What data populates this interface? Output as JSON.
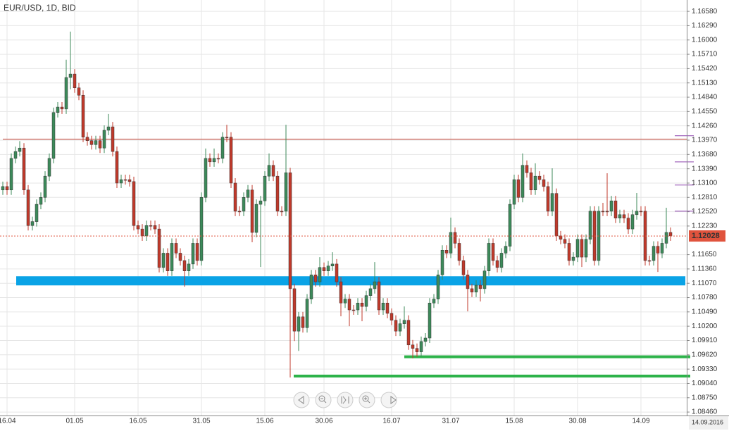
{
  "chart_data": {
    "type": "candlestick",
    "title": "EUR/USD, 1D, BID",
    "ylim": [
      1.0839,
      1.1681
    ],
    "yticks": [
      {
        "value": 1.1658,
        "label": "1.16580"
      },
      {
        "value": 1.1629,
        "label": "1.16290"
      },
      {
        "value": 1.16,
        "label": "1.16000"
      },
      {
        "value": 1.1571,
        "label": "1.15710"
      },
      {
        "value": 1.1542,
        "label": "1.15420"
      },
      {
        "value": 1.1513,
        "label": "1.15130"
      },
      {
        "value": 1.1484,
        "label": "1.14840"
      },
      {
        "value": 1.1455,
        "label": "1.14550"
      },
      {
        "value": 1.1426,
        "label": "1.14260"
      },
      {
        "value": 1.1397,
        "label": "1.13970"
      },
      {
        "value": 1.1368,
        "label": "1.13680"
      },
      {
        "value": 1.1339,
        "label": "1.13390"
      },
      {
        "value": 1.131,
        "label": "1.13100"
      },
      {
        "value": 1.1281,
        "label": "1.12810"
      },
      {
        "value": 1.1252,
        "label": "1.12520"
      },
      {
        "value": 1.1223,
        "label": "1.12230"
      },
      {
        "value": 1.1165,
        "label": "1.11650"
      },
      {
        "value": 1.1136,
        "label": "1.11360"
      },
      {
        "value": 1.1107,
        "label": "1.11070"
      },
      {
        "value": 1.1078,
        "label": "1.10780"
      },
      {
        "value": 1.1049,
        "label": "1.10490"
      },
      {
        "value": 1.102,
        "label": "1.10200"
      },
      {
        "value": 1.0991,
        "label": "1.09910"
      },
      {
        "value": 1.0962,
        "label": "1.09620"
      },
      {
        "value": 1.0933,
        "label": "1.09330"
      },
      {
        "value": 1.0904,
        "label": "1.09040"
      },
      {
        "value": 1.0875,
        "label": "1.08750"
      },
      {
        "value": 1.0846,
        "label": "1.08460"
      }
    ],
    "grid": true,
    "up_color": "#3c8a5a",
    "down_color": "#c0392b",
    "current_price": 1.12028,
    "current_price_color": "#e0533d",
    "current_date": "14.09.2016",
    "levels": [
      {
        "value": 1.1399,
        "color": "#c0392b"
      },
      {
        "value": 1.1112,
        "color": "#0aa3e6"
      },
      {
        "value": 1.0958,
        "color": "#2db34a"
      },
      {
        "value": 1.0919,
        "color": "#2db34a"
      },
      {
        "value": 1.1406,
        "color": "#8e44ad"
      },
      {
        "value": 1.1353,
        "color": "#8e44ad"
      },
      {
        "value": 1.1306,
        "color": "#8e44ad"
      },
      {
        "value": 1.1253,
        "color": "#8e44ad"
      }
    ],
    "categories": [
      null,
      "16.04",
      null,
      null,
      null,
      null,
      null,
      null,
      null,
      null,
      null,
      null,
      null,
      null,
      null,
      null,
      null,
      "01.05",
      null,
      null,
      null,
      null,
      null,
      null,
      null,
      null,
      null,
      null,
      null,
      null,
      null,
      null,
      "16.05",
      null,
      null,
      null,
      null,
      null,
      null,
      null,
      null,
      null,
      null,
      null,
      null,
      null,
      null,
      "31.05",
      null,
      null,
      null,
      null,
      null,
      null,
      null,
      null,
      null,
      null,
      null,
      null,
      null,
      null,
      "15.06",
      null,
      null,
      null,
      null,
      null,
      null,
      null,
      null,
      null,
      null,
      null,
      null,
      null,
      "30.06",
      null,
      null,
      null,
      null,
      null,
      null,
      null,
      null,
      null,
      null,
      null,
      null,
      null,
      null,
      null,
      "16.07",
      null,
      null,
      null,
      null,
      null,
      null,
      null,
      null,
      null,
      null,
      null,
      null,
      null,
      "31.07",
      null,
      null,
      null,
      null,
      null,
      null,
      null,
      null,
      null,
      null,
      null,
      null,
      null,
      null,
      "15.08",
      null,
      null,
      null,
      null,
      null,
      null,
      null,
      null,
      null,
      null,
      null,
      null,
      null,
      null,
      "30.08",
      null,
      null,
      null,
      null,
      null,
      null,
      null,
      null,
      null,
      null,
      null,
      null,
      null,
      null,
      "14.09",
      null,
      null,
      null,
      null,
      null,
      null,
      null
    ],
    "ohlc": [
      [
        1.1296,
        1.1313,
        1.1286,
        1.1303
      ],
      [
        1.1303,
        1.1313,
        1.1286,
        1.1296
      ],
      [
        1.1296,
        1.137,
        1.1286,
        1.136
      ],
      [
        1.136,
        1.1384,
        1.135,
        1.1374
      ],
      [
        1.1374,
        1.1395,
        1.1364,
        1.1381
      ],
      [
        1.1381,
        1.1391,
        1.1286,
        1.1296
      ],
      [
        1.1296,
        1.1306,
        1.1214,
        1.1224
      ],
      [
        1.1224,
        1.1242,
        1.1214,
        1.1232
      ],
      [
        1.1232,
        1.1277,
        1.1222,
        1.1267
      ],
      [
        1.1267,
        1.1291,
        1.1257,
        1.1281
      ],
      [
        1.1281,
        1.1334,
        1.1271,
        1.1324
      ],
      [
        1.1324,
        1.137,
        1.1314,
        1.136
      ],
      [
        1.136,
        1.1463,
        1.135,
        1.1453
      ],
      [
        1.1453,
        1.1474,
        1.1443,
        1.1464
      ],
      [
        1.1464,
        1.1474,
        1.145,
        1.146
      ],
      [
        1.146,
        1.156,
        1.145,
        1.1524
      ],
      [
        1.1524,
        1.1617,
        1.15,
        1.1531
      ],
      [
        1.1531,
        1.1541,
        1.1493,
        1.1503
      ],
      [
        1.1503,
        1.1513,
        1.1478,
        1.1488
      ],
      [
        1.1488,
        1.1498,
        1.1393,
        1.1403
      ],
      [
        1.1403,
        1.1413,
        1.1386,
        1.1396
      ],
      [
        1.1396,
        1.1406,
        1.1378,
        1.1388
      ],
      [
        1.1388,
        1.1406,
        1.1378,
        1.1396
      ],
      [
        1.1396,
        1.1406,
        1.1371,
        1.1381
      ],
      [
        1.1381,
        1.1427,
        1.1371,
        1.1417
      ],
      [
        1.1417,
        1.145,
        1.1407,
        1.1424
      ],
      [
        1.1424,
        1.1434,
        1.1364,
        1.1374
      ],
      [
        1.1374,
        1.1384,
        1.13,
        1.131
      ],
      [
        1.131,
        1.1327,
        1.13,
        1.1317
      ],
      [
        1.1317,
        1.1327,
        1.1307,
        1.1317
      ],
      [
        1.1317,
        1.1327,
        1.1303,
        1.1313
      ],
      [
        1.1313,
        1.1323,
        1.1214,
        1.1224
      ],
      [
        1.1224,
        1.1234,
        1.1207,
        1.1217
      ],
      [
        1.1217,
        1.1227,
        1.1193,
        1.1203
      ],
      [
        1.1203,
        1.1234,
        1.1193,
        1.1224
      ],
      [
        1.1224,
        1.1234,
        1.1214,
        1.1224
      ],
      [
        1.1224,
        1.1234,
        1.1207,
        1.1217
      ],
      [
        1.1217,
        1.1227,
        1.1129,
        1.1139
      ],
      [
        1.1139,
        1.1178,
        1.1129,
        1.1168
      ],
      [
        1.1168,
        1.1178,
        1.1122,
        1.1132
      ],
      [
        1.1132,
        1.1198,
        1.1122,
        1.1188
      ],
      [
        1.1188,
        1.1198,
        1.1158,
        1.1168
      ],
      [
        1.1168,
        1.1178,
        1.1143,
        1.1153
      ],
      [
        1.1153,
        1.1163,
        1.11,
        1.1132
      ],
      [
        1.1132,
        1.1156,
        1.1122,
        1.1146
      ],
      [
        1.1146,
        1.1198,
        1.1136,
        1.1188
      ],
      [
        1.1188,
        1.1198,
        1.1143,
        1.1153
      ],
      [
        1.1153,
        1.1291,
        1.1143,
        1.1281
      ],
      [
        1.1281,
        1.138,
        1.1271,
        1.136
      ],
      [
        1.136,
        1.137,
        1.1343,
        1.1353
      ],
      [
        1.1353,
        1.138,
        1.1343,
        1.136
      ],
      [
        1.136,
        1.137,
        1.135,
        1.136
      ],
      [
        1.136,
        1.1413,
        1.135,
        1.1403
      ],
      [
        1.1403,
        1.1428,
        1.1393,
        1.1403
      ],
      [
        1.1403,
        1.1413,
        1.13,
        1.131
      ],
      [
        1.131,
        1.132,
        1.1243,
        1.1253
      ],
      [
        1.1253,
        1.1263,
        1.1243,
        1.1253
      ],
      [
        1.1253,
        1.1291,
        1.1243,
        1.1281
      ],
      [
        1.1281,
        1.1306,
        1.1271,
        1.1296
      ],
      [
        1.1296,
        1.1306,
        1.119,
        1.121
      ],
      [
        1.121,
        1.1277,
        1.12,
        1.1267
      ],
      [
        1.1267,
        1.1284,
        1.114,
        1.1274
      ],
      [
        1.1274,
        1.1334,
        1.1264,
        1.1324
      ],
      [
        1.1324,
        1.137,
        1.1314,
        1.1346
      ],
      [
        1.1346,
        1.1356,
        1.1314,
        1.1324
      ],
      [
        1.1324,
        1.1334,
        1.1243,
        1.1253
      ],
      [
        1.1253,
        1.1263,
        1.1243,
        1.1253
      ],
      [
        1.1253,
        1.1428,
        1.1243,
        1.1331
      ],
      [
        1.1331,
        1.1341,
        1.0916,
        1.1096
      ],
      [
        1.1096,
        1.1106,
        1.099,
        1.101
      ],
      [
        1.101,
        1.1049,
        1.097,
        1.1039
      ],
      [
        1.1039,
        1.1049,
        1.1007,
        1.1017
      ],
      [
        1.1017,
        1.1085,
        1.1007,
        1.1075
      ],
      [
        1.1075,
        1.1134,
        1.1065,
        1.1124
      ],
      [
        1.1124,
        1.1134,
        1.11,
        1.111
      ],
      [
        1.111,
        1.116,
        1.11,
        1.1139
      ],
      [
        1.1139,
        1.1149,
        1.1122,
        1.1132
      ],
      [
        1.1132,
        1.1152,
        1.1122,
        1.1142
      ],
      [
        1.1142,
        1.117,
        1.1132,
        1.1146
      ],
      [
        1.1146,
        1.1156,
        1.11,
        1.111
      ],
      [
        1.111,
        1.112,
        1.104,
        1.1067
      ],
      [
        1.1067,
        1.1085,
        1.1057,
        1.1075
      ],
      [
        1.1075,
        1.1085,
        1.102,
        1.1053
      ],
      [
        1.1053,
        1.1063,
        1.1043,
        1.1053
      ],
      [
        1.1053,
        1.1077,
        1.1043,
        1.1067
      ],
      [
        1.1067,
        1.1077,
        1.103,
        1.106
      ],
      [
        1.106,
        1.1092,
        1.105,
        1.1082
      ],
      [
        1.1082,
        1.1106,
        1.1072,
        1.1096
      ],
      [
        1.1096,
        1.115,
        1.1086,
        1.111
      ],
      [
        1.111,
        1.112,
        1.1043,
        1.1053
      ],
      [
        1.1053,
        1.1077,
        1.1043,
        1.1067
      ],
      [
        1.1067,
        1.1077,
        1.1036,
        1.1046
      ],
      [
        1.1046,
        1.1056,
        1.1022,
        1.1032
      ],
      [
        1.1032,
        1.1042,
        1.1,
        1.101
      ],
      [
        1.101,
        1.1035,
        1.1,
        1.1025
      ],
      [
        1.1025,
        1.106,
        1.1015,
        1.1032
      ],
      [
        1.1032,
        1.1042,
        1.0972,
        1.0982
      ],
      [
        1.0982,
        1.0992,
        1.0955,
        1.0975
      ],
      [
        1.0975,
        1.0985,
        1.0958,
        1.0968
      ],
      [
        1.0968,
        1.0999,
        1.0958,
        1.0989
      ],
      [
        1.0989,
        1.1006,
        1.0979,
        1.0996
      ],
      [
        1.0996,
        1.1077,
        1.0986,
        1.1067
      ],
      [
        1.1067,
        1.1085,
        1.1057,
        1.1075
      ],
      [
        1.1075,
        1.1134,
        1.1065,
        1.1124
      ],
      [
        1.1124,
        1.1184,
        1.1114,
        1.1174
      ],
      [
        1.1174,
        1.1184,
        1.1158,
        1.1168
      ],
      [
        1.1168,
        1.124,
        1.1158,
        1.121
      ],
      [
        1.121,
        1.122,
        1.1178,
        1.1188
      ],
      [
        1.1188,
        1.1198,
        1.1143,
        1.1153
      ],
      [
        1.1153,
        1.1163,
        1.1114,
        1.1124
      ],
      [
        1.1124,
        1.1134,
        1.105,
        1.1096
      ],
      [
        1.1096,
        1.1106,
        1.1079,
        1.1089
      ],
      [
        1.1089,
        1.1113,
        1.1079,
        1.1103
      ],
      [
        1.1103,
        1.1113,
        1.107,
        1.1096
      ],
      [
        1.1096,
        1.1142,
        1.1086,
        1.1132
      ],
      [
        1.1132,
        1.1198,
        1.1122,
        1.1188
      ],
      [
        1.1188,
        1.1198,
        1.1143,
        1.1153
      ],
      [
        1.1153,
        1.1163,
        1.1129,
        1.1139
      ],
      [
        1.1139,
        1.1178,
        1.1129,
        1.1168
      ],
      [
        1.1168,
        1.1192,
        1.1158,
        1.1182
      ],
      [
        1.1182,
        1.1277,
        1.1172,
        1.1267
      ],
      [
        1.1267,
        1.1327,
        1.1257,
        1.1317
      ],
      [
        1.1317,
        1.1327,
        1.1271,
        1.1281
      ],
      [
        1.1281,
        1.137,
        1.1271,
        1.1346
      ],
      [
        1.1346,
        1.1356,
        1.1321,
        1.1331
      ],
      [
        1.1331,
        1.1341,
        1.1286,
        1.1296
      ],
      [
        1.1296,
        1.135,
        1.1286,
        1.1324
      ],
      [
        1.1324,
        1.1334,
        1.1307,
        1.1317
      ],
      [
        1.1317,
        1.1327,
        1.1293,
        1.1303
      ],
      [
        1.1303,
        1.1313,
        1.1243,
        1.1253
      ],
      [
        1.1253,
        1.134,
        1.1243,
        1.1289
      ],
      [
        1.1289,
        1.1299,
        1.1193,
        1.1203
      ],
      [
        1.1203,
        1.1213,
        1.1186,
        1.1196
      ],
      [
        1.1196,
        1.1206,
        1.1178,
        1.1188
      ],
      [
        1.1188,
        1.1198,
        1.1143,
        1.1153
      ],
      [
        1.1153,
        1.117,
        1.1143,
        1.116
      ],
      [
        1.116,
        1.1206,
        1.115,
        1.1196
      ],
      [
        1.1196,
        1.1206,
        1.114,
        1.116
      ],
      [
        1.116,
        1.1206,
        1.115,
        1.1196
      ],
      [
        1.1196,
        1.1263,
        1.1186,
        1.1253
      ],
      [
        1.1253,
        1.1263,
        1.1143,
        1.1153
      ],
      [
        1.1153,
        1.1263,
        1.1143,
        1.1253
      ],
      [
        1.1253,
        1.127,
        1.1243,
        1.1253
      ],
      [
        1.1253,
        1.133,
        1.1243,
        1.1253
      ],
      [
        1.1253,
        1.1284,
        1.1243,
        1.1274
      ],
      [
        1.1274,
        1.1284,
        1.1229,
        1.1239
      ],
      [
        1.1239,
        1.1256,
        1.1229,
        1.1246
      ],
      [
        1.1246,
        1.1256,
        1.1229,
        1.1239
      ],
      [
        1.1239,
        1.1249,
        1.1207,
        1.1217
      ],
      [
        1.1217,
        1.1256,
        1.1207,
        1.1246
      ],
      [
        1.1246,
        1.129,
        1.1236,
        1.1253
      ],
      [
        1.1253,
        1.1263,
        1.1243,
        1.1253
      ],
      [
        1.1253,
        1.1263,
        1.1143,
        1.1153
      ],
      [
        1.1153,
        1.1163,
        1.1143,
        1.1153
      ],
      [
        1.1153,
        1.1192,
        1.1143,
        1.1182
      ],
      [
        1.1182,
        1.1192,
        1.113,
        1.1168
      ],
      [
        1.1168,
        1.1198,
        1.1158,
        1.1188
      ],
      [
        1.1188,
        1.126,
        1.1178,
        1.121
      ],
      [
        1.121,
        1.122,
        1.1193,
        1.1203
      ]
    ]
  }
}
